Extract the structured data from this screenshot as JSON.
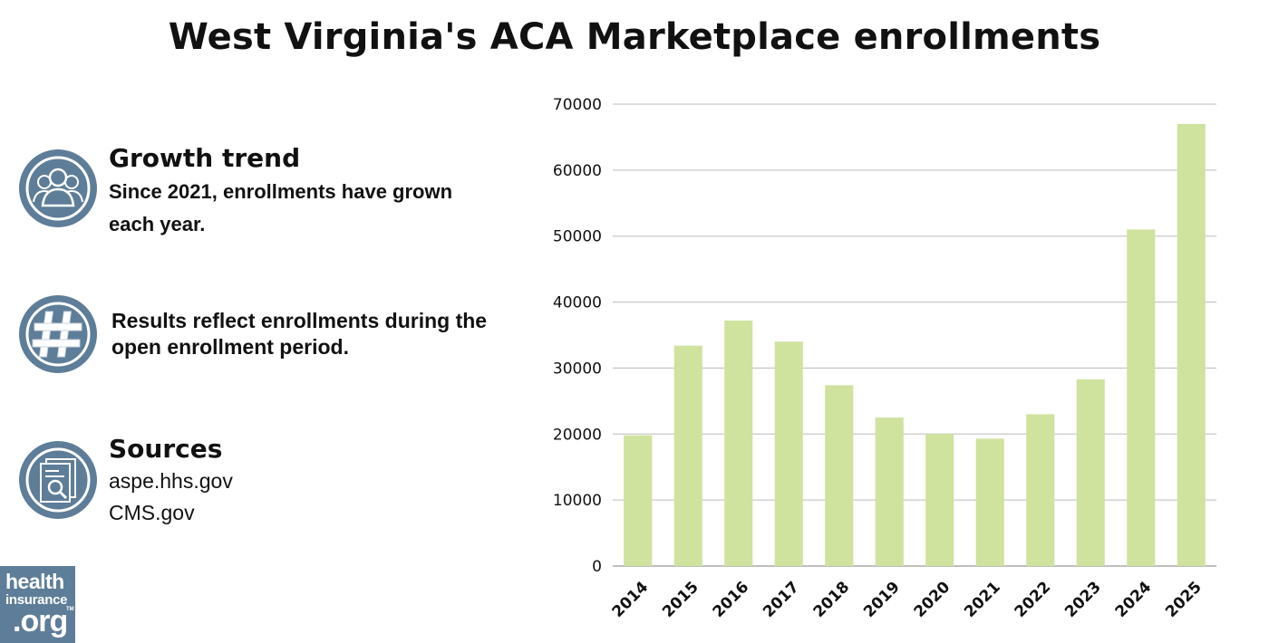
{
  "title": "West Virginia's ACA Marketplace enrollments",
  "info": {
    "growth": {
      "icon": "people-icon",
      "heading": "Growth trend",
      "line1": "Since 2021, enrollments have grown",
      "line2": "each year."
    },
    "note": {
      "icon": "hashtag-icon",
      "line1": "Results reflect enrollments during the",
      "line2": "open enrollment period."
    },
    "sources": {
      "icon": "document-search-icon",
      "heading": "Sources",
      "items": [
        "aspe.hhs.gov",
        "CMS.gov"
      ]
    }
  },
  "logo": {
    "line1": "health",
    "line2": "insurance",
    "line3": ".org",
    "tm": "TM"
  },
  "colors": {
    "bar": "#cfe29e",
    "icon_circle": "#5e7d98",
    "grid": "#c9c9c9"
  },
  "chart_data": {
    "type": "bar",
    "title": "West Virginia's ACA Marketplace enrollments",
    "xlabel": "",
    "ylabel": "",
    "categories": [
      "2014",
      "2015",
      "2016",
      "2017",
      "2018",
      "2019",
      "2020",
      "2021",
      "2022",
      "2023",
      "2024",
      "2025"
    ],
    "values": [
      19800,
      33400,
      37200,
      34000,
      27400,
      22500,
      20000,
      19300,
      23000,
      28300,
      51000,
      67000
    ],
    "ylim": [
      0,
      70000
    ],
    "yticks": [
      "0",
      "10000",
      "20000",
      "30000",
      "40000",
      "50000",
      "60000",
      "70000"
    ],
    "grid": true,
    "legend": "none"
  }
}
